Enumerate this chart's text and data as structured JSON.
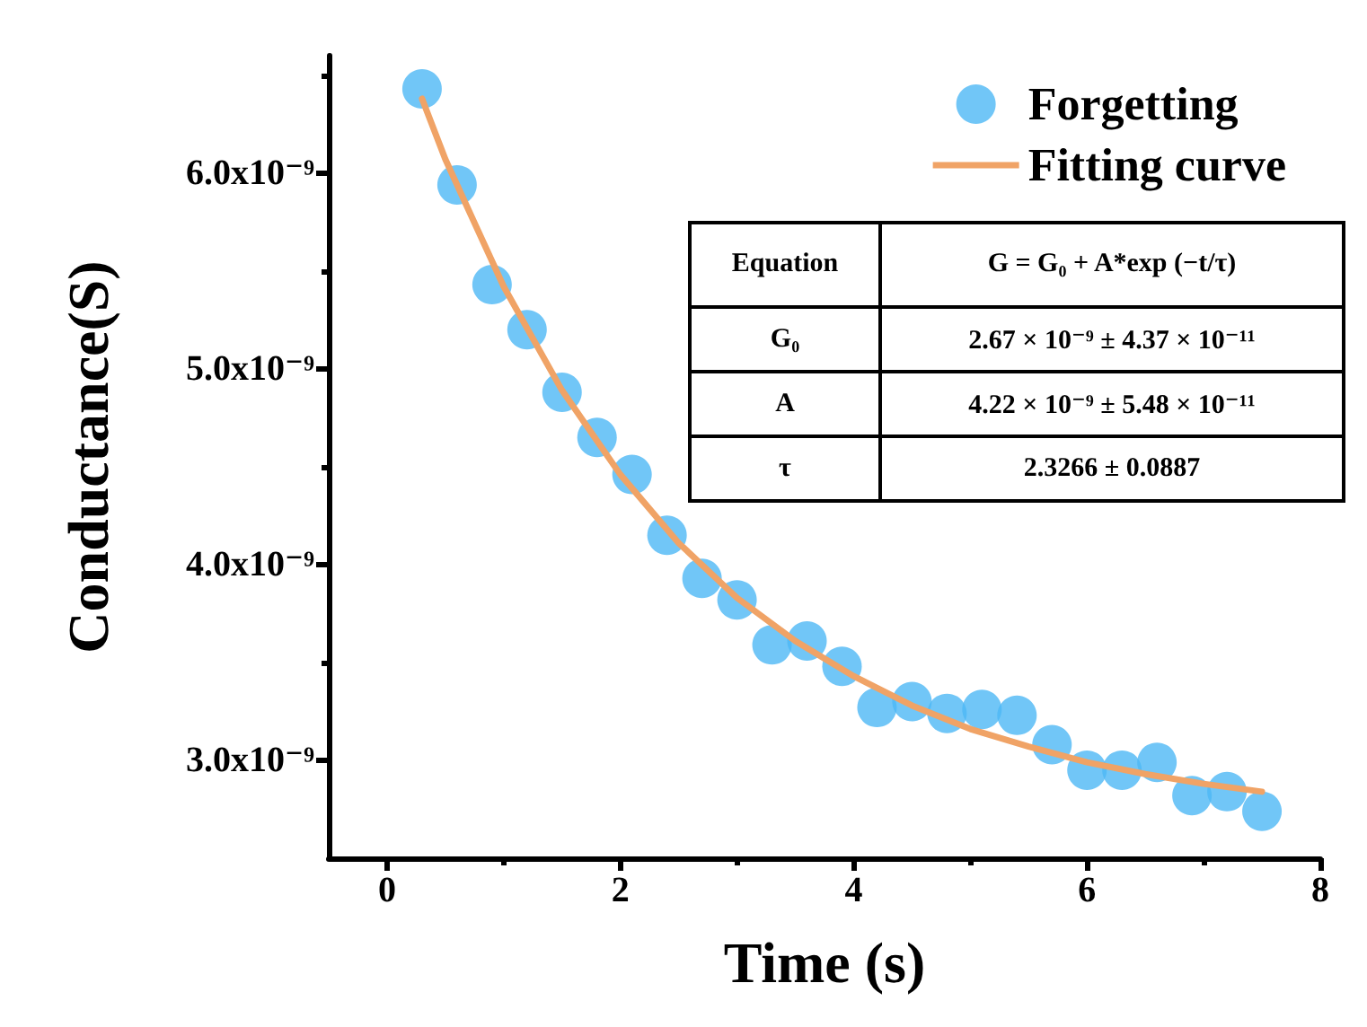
{
  "chart_data": {
    "type": "scatter",
    "xlabel": "Time (s)",
    "ylabel": "Conductance(S)",
    "xlim": [
      -0.5,
      8
    ],
    "xticks": [
      0,
      2,
      4,
      6,
      8
    ],
    "ylim": [
      2.5e-09,
      6.6e-09
    ],
    "yticks": [
      {
        "value": 3e-09,
        "label": "3.0x10⁻⁹"
      },
      {
        "value": 4e-09,
        "label": "4.0x10⁻⁹"
      },
      {
        "value": 5e-09,
        "label": "5.0x10⁻⁹"
      },
      {
        "value": 6e-09,
        "label": "6.0x10⁻⁹"
      }
    ],
    "grid": false,
    "legend": "top right",
    "series": [
      {
        "name": "Forgetting",
        "marker": "circle",
        "color": "#4db8f5",
        "x": [
          0.3,
          0.6,
          0.9,
          1.2,
          1.5,
          1.8,
          2.1,
          2.4,
          2.7,
          3.0,
          3.3,
          3.6,
          3.9,
          4.2,
          4.5,
          4.8,
          5.1,
          5.4,
          5.7,
          6.0,
          6.3,
          6.6,
          6.9,
          7.2,
          7.5
        ],
        "values": [
          6.43e-09,
          5.94e-09,
          5.43e-09,
          5.2e-09,
          4.88e-09,
          4.65e-09,
          4.46e-09,
          4.15e-09,
          3.93e-09,
          3.82e-09,
          3.59e-09,
          3.61e-09,
          3.48e-09,
          3.27e-09,
          3.3e-09,
          3.24e-09,
          3.26e-09,
          3.23e-09,
          3.08e-09,
          2.95e-09,
          2.95e-09,
          2.99e-09,
          2.82e-09,
          2.84e-09,
          2.74e-09
        ]
      },
      {
        "name": "Fitting curve",
        "type": "line",
        "color": "#f0a366",
        "line_style": "solid",
        "x": [
          0.3,
          0.5,
          1,
          1.5,
          2,
          2.5,
          3,
          3.5,
          4,
          4.5,
          5,
          5.5,
          6,
          6.5,
          7,
          7.5
        ],
        "values": [
          6.38e-09,
          6.07e-09,
          5.42e-09,
          4.89e-09,
          4.46e-09,
          4.11e-09,
          3.83e-09,
          3.61e-09,
          3.43e-09,
          3.28e-09,
          3.16e-09,
          3.07e-09,
          2.99e-09,
          2.93e-09,
          2.88e-09,
          2.84e-09
        ]
      }
    ],
    "annotations": [
      "Equation",
      "G = G₀ + A*exp (−t/τ)",
      "G₀",
      "2.67 × 10⁻⁹ ± 4.37 × 10⁻¹¹",
      "A",
      "4.22 × 10⁻⁹ ± 5.48 × 10⁻¹¹",
      "τ",
      "2.3266 ± 0.0887"
    ]
  }
}
